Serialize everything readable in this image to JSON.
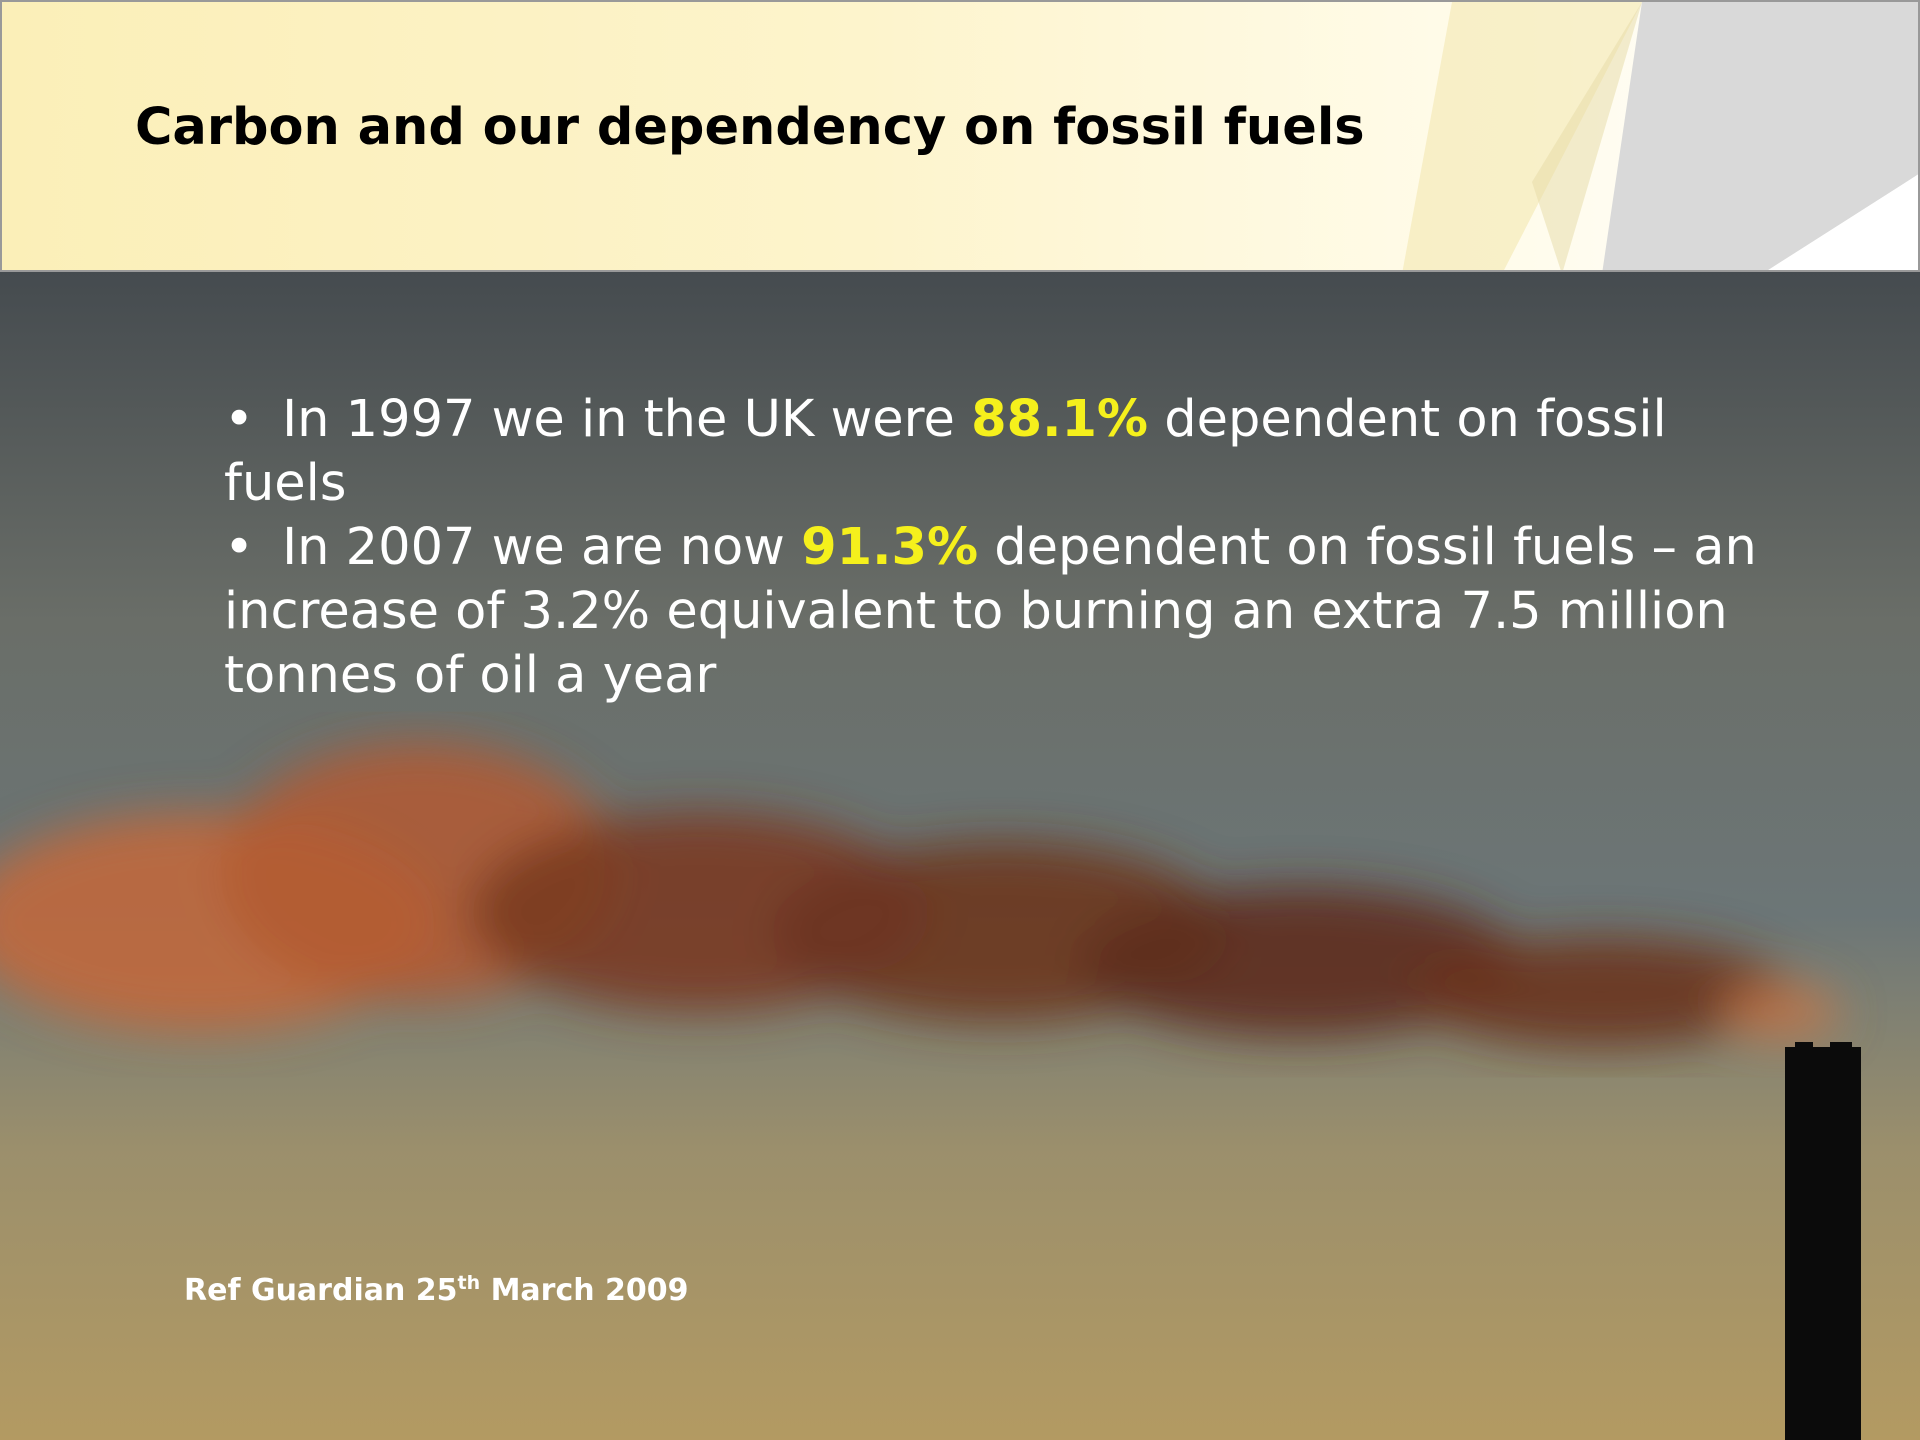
{
  "header": {
    "title": "Carbon and our dependency on fossil fuels"
  },
  "bullets": [
    {
      "marker": "•",
      "before": "In 1997 we in the UK were ",
      "highlight": "88.1%",
      "after": " dependent on fossil fuels"
    },
    {
      "marker": "•",
      "before": "In 2007 we are now ",
      "highlight": "91.3%",
      "after": " dependent on fossil fuels – an increase of 3.2% equivalent to burning an extra 7.5 million tonnes of oil a year"
    }
  ],
  "reference": {
    "before": "Ref Guardian 25",
    "sup": "th",
    "after": " March 2009"
  }
}
